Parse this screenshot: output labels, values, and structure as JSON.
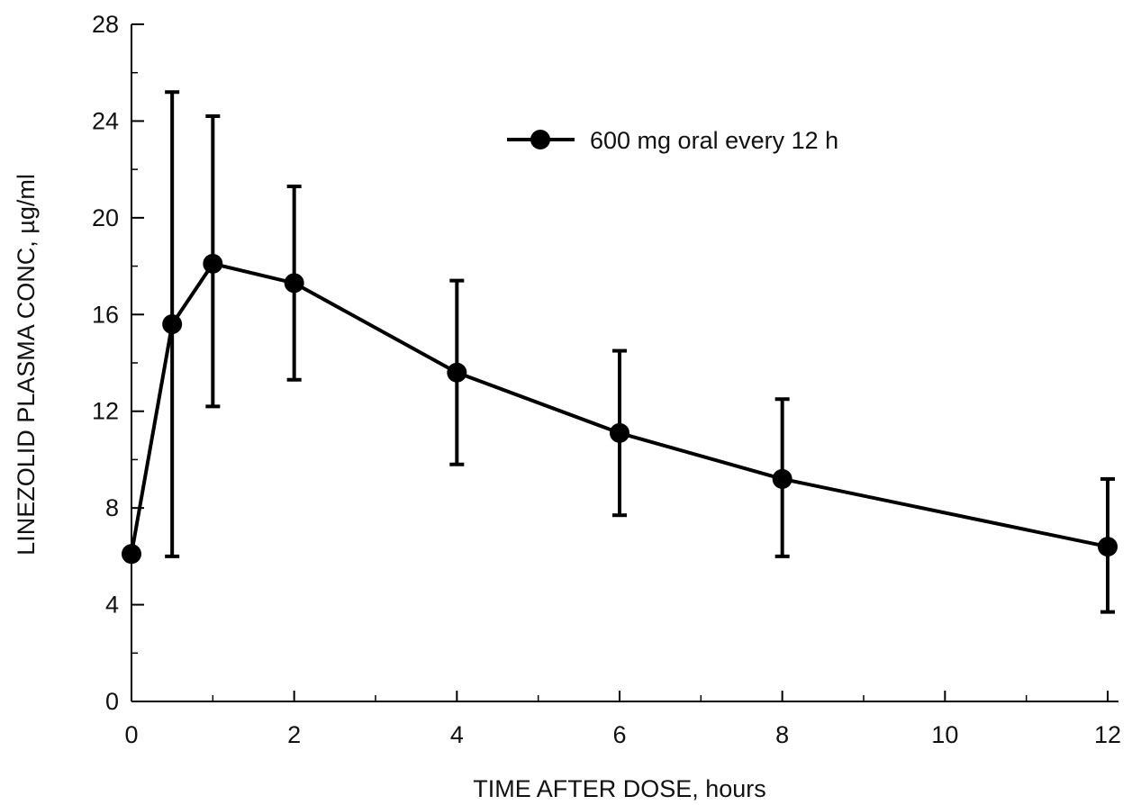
{
  "chart_data": {
    "type": "line",
    "title": "",
    "xlabel": "TIME AFTER DOSE, hours",
    "ylabel": "LINEZOLID PLASMA CONC, µg/ml",
    "xlim": [
      0,
      12
    ],
    "ylim": [
      0,
      28
    ],
    "x_ticks": [
      0,
      2,
      4,
      6,
      8,
      10,
      12
    ],
    "x_minor_ticks": [
      1,
      3,
      5,
      7,
      9,
      11
    ],
    "y_ticks": [
      0,
      4,
      8,
      12,
      16,
      20,
      24,
      28
    ],
    "y_minor_ticks": [
      2,
      6,
      10,
      14,
      18,
      22,
      26
    ],
    "grid": false,
    "legend_position": "top-right",
    "series": [
      {
        "name": "600 mg oral every 12 h",
        "color": "#000000",
        "marker": "filled-circle",
        "points": [
          {
            "x": 0,
            "y": 6.1
          },
          {
            "x": 0.5,
            "y": 15.6,
            "err_low": 6.0,
            "err_high": 25.2
          },
          {
            "x": 1,
            "y": 18.1,
            "err_low": 12.2,
            "err_high": 24.2
          },
          {
            "x": 2,
            "y": 17.3,
            "err_low": 13.3,
            "err_high": 21.3
          },
          {
            "x": 4,
            "y": 13.6,
            "err_low": 9.8,
            "err_high": 17.4
          },
          {
            "x": 6,
            "y": 11.1,
            "err_low": 7.7,
            "err_high": 14.5
          },
          {
            "x": 8,
            "y": 9.2,
            "err_low": 6.0,
            "err_high": 12.5
          },
          {
            "x": 12,
            "y": 6.4,
            "err_low": 3.7,
            "err_high": 9.2
          }
        ]
      }
    ]
  }
}
